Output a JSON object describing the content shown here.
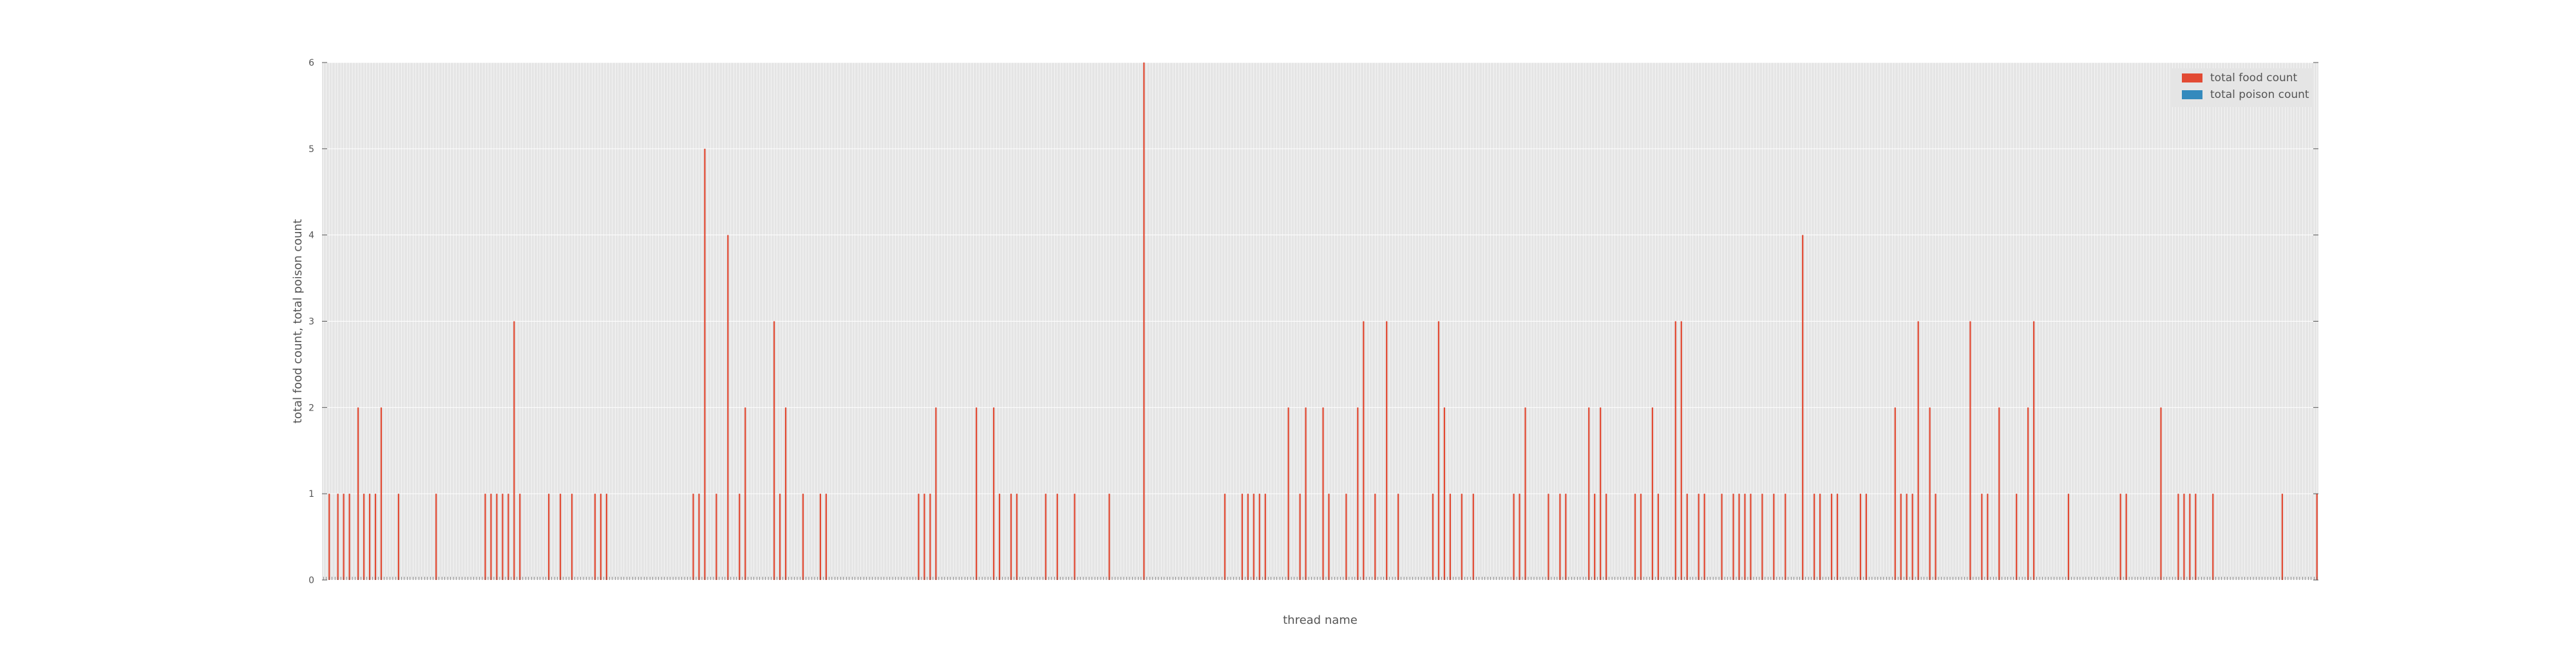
{
  "chart_data": {
    "type": "bar",
    "title": "",
    "xlabel": "thread name",
    "ylabel": "total food count, total poison count",
    "ylim": [
      0,
      6
    ],
    "yticks": [
      0,
      1,
      2,
      3,
      4,
      5,
      6
    ],
    "grid": true,
    "legend_position": "top-right",
    "x_tick_labels_note": "",
    "series": [
      {
        "name": "total food count",
        "color": "#e24a33",
        "values": [
          0,
          0,
          1,
          0,
          0,
          1,
          0,
          1,
          0,
          1,
          0,
          0,
          2,
          0,
          1,
          0,
          1,
          0,
          1,
          0,
          2,
          0,
          0,
          0,
          0,
          0,
          1,
          0,
          0,
          0,
          0,
          0,
          0,
          0,
          0,
          0,
          0,
          0,
          0,
          1,
          0,
          0,
          0,
          0,
          0,
          0,
          0,
          0,
          0,
          0,
          0,
          0,
          0,
          0,
          0,
          0,
          1,
          0,
          1,
          0,
          1,
          0,
          1,
          0,
          1,
          0,
          3,
          0,
          1,
          0,
          0,
          0,
          0,
          0,
          0,
          0,
          0,
          0,
          1,
          0,
          0,
          0,
          1,
          0,
          0,
          0,
          1,
          0,
          0,
          0,
          0,
          0,
          0,
          0,
          1,
          0,
          1,
          0,
          1,
          0,
          0,
          0,
          0,
          0,
          0,
          0,
          0,
          0,
          0,
          0,
          0,
          0,
          0,
          0,
          0,
          0,
          0,
          0,
          0,
          0,
          0,
          0,
          0,
          0,
          0,
          0,
          0,
          0,
          1,
          0,
          1,
          0,
          5,
          0,
          0,
          0,
          1,
          0,
          0,
          0,
          4,
          0,
          0,
          0,
          1,
          0,
          2,
          0,
          0,
          0,
          0,
          0,
          0,
          0,
          0,
          0,
          3,
          0,
          1,
          0,
          2,
          0,
          0,
          0,
          0,
          0,
          1,
          0,
          0,
          0,
          0,
          0,
          1,
          0,
          1,
          0,
          0,
          0,
          0,
          0,
          0,
          0,
          0,
          0,
          0,
          0,
          0,
          0,
          0,
          0,
          0,
          0,
          0,
          0,
          0,
          0,
          0,
          0,
          0,
          0,
          0,
          0,
          0,
          0,
          0,
          0,
          1,
          0,
          1,
          0,
          1,
          0,
          2,
          0,
          0,
          0,
          0,
          0,
          0,
          0,
          0,
          0,
          0,
          0,
          0,
          0,
          2,
          0,
          0,
          0,
          0,
          0,
          2,
          0,
          1,
          0,
          0,
          0,
          1,
          0,
          1,
          0,
          0,
          0,
          0,
          0,
          0,
          0,
          0,
          0,
          1,
          0,
          0,
          0,
          1,
          0,
          0,
          0,
          0,
          0,
          1,
          0,
          0,
          0,
          0,
          0,
          0,
          0,
          0,
          0,
          0,
          0,
          1,
          0,
          0,
          0,
          0,
          0,
          0,
          0,
          0,
          0,
          0,
          0,
          6,
          0,
          0,
          0,
          0,
          0,
          0,
          0,
          0,
          0,
          0,
          0,
          0,
          0,
          0,
          0,
          0,
          0,
          0,
          0,
          0,
          0,
          0,
          0,
          0,
          0,
          0,
          0,
          1,
          0,
          0,
          0,
          0,
          0,
          1,
          0,
          1,
          0,
          1,
          0,
          1,
          0,
          1,
          0,
          0,
          0,
          0,
          0,
          0,
          0,
          2,
          0,
          0,
          0,
          1,
          0,
          2,
          0,
          0,
          0,
          0,
          0,
          2,
          0,
          1,
          0,
          0,
          0,
          0,
          0,
          1,
          0,
          0,
          0,
          2,
          0,
          3,
          0,
          0,
          0,
          1,
          0,
          0,
          0,
          3,
          0,
          0,
          0,
          1,
          0,
          0,
          0,
          0,
          0,
          0,
          0,
          0,
          0,
          0,
          0,
          1,
          0,
          3,
          0,
          2,
          0,
          1,
          0,
          0,
          0,
          1,
          0,
          0,
          0,
          1,
          0,
          0,
          0,
          0,
          0,
          0,
          0,
          0,
          0,
          0,
          0,
          0,
          0,
          1,
          0,
          1,
          0,
          2,
          0,
          0,
          0,
          0,
          0,
          0,
          0,
          1,
          0,
          0,
          0,
          1,
          0,
          1,
          0,
          0,
          0,
          0,
          0,
          0,
          0,
          2,
          0,
          1,
          0,
          2,
          0,
          1,
          0,
          0,
          0,
          0,
          0,
          0,
          0,
          0,
          0,
          1,
          0,
          1,
          0,
          0,
          0,
          2,
          0,
          1,
          0,
          0,
          0,
          0,
          0,
          3,
          0,
          3,
          0,
          1,
          0,
          0,
          0,
          1,
          0,
          1,
          0,
          0,
          0,
          0,
          0,
          1,
          0,
          0,
          0,
          1,
          0,
          1,
          0,
          1,
          0,
          1,
          0,
          0,
          0,
          1,
          0,
          0,
          0,
          1,
          0,
          0,
          0,
          1,
          0,
          0,
          0,
          0,
          0,
          4,
          0,
          0,
          0,
          1,
          0,
          1,
          0,
          0,
          0,
          1,
          0,
          1,
          0,
          0,
          0,
          0,
          0,
          0,
          0,
          1,
          0,
          1,
          0,
          0,
          0,
          0,
          0,
          0,
          0,
          0,
          0,
          2,
          0,
          1,
          0,
          1,
          0,
          1,
          0,
          3,
          0,
          0,
          0,
          2,
          0,
          1,
          0,
          0,
          0,
          0,
          0,
          0,
          0,
          0,
          0,
          0,
          0,
          3,
          0,
          0,
          0,
          1,
          0,
          1,
          0,
          0,
          0,
          2,
          0,
          0,
          0,
          0,
          0,
          1,
          0,
          0,
          0,
          2,
          0,
          3,
          0,
          0,
          0,
          0,
          0,
          0,
          0,
          0,
          0,
          0,
          0,
          1,
          0,
          0,
          0,
          0,
          0,
          0,
          0,
          0,
          0,
          0,
          0,
          0,
          0,
          0,
          0,
          0,
          0,
          1,
          0,
          1,
          0,
          0,
          0,
          0,
          0,
          0,
          0,
          0,
          0,
          0,
          0,
          2,
          0,
          0,
          0,
          0,
          0,
          1,
          0,
          1,
          0,
          1,
          0,
          1,
          0,
          0,
          0,
          0,
          0,
          1,
          0,
          0,
          0,
          0,
          0,
          0,
          0,
          0,
          0,
          0,
          0,
          0,
          0,
          0,
          0,
          0,
          0,
          0,
          0,
          0,
          0,
          0,
          0,
          1,
          0,
          0,
          0,
          0,
          0,
          0,
          0,
          0,
          0,
          0,
          0,
          1
        ]
      },
      {
        "name": "total poison count",
        "color": "#348abd",
        "values": []
      }
    ]
  }
}
